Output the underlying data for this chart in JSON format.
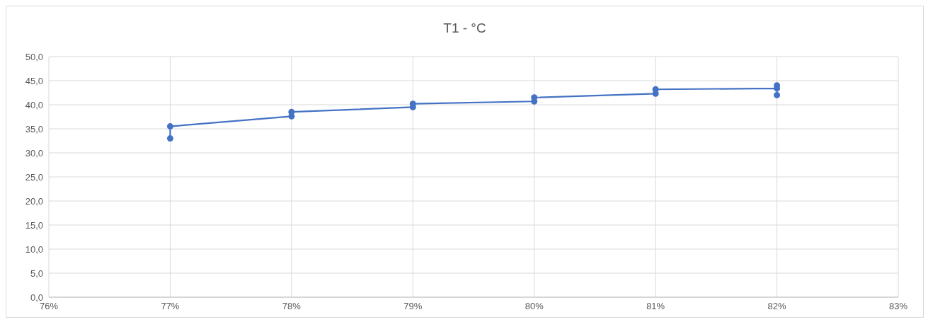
{
  "chart_data": {
    "type": "line",
    "title": "T1 - °C",
    "x": [
      0.77,
      0.77,
      0.78,
      0.78,
      0.79,
      0.79,
      0.8,
      0.8,
      0.81,
      0.81,
      0.82,
      0.82,
      0.82
    ],
    "series": [
      {
        "color": "#4472c4",
        "values": [
          33.0,
          35.5,
          37.6,
          38.5,
          39.5,
          40.2,
          40.7,
          41.5,
          42.3,
          43.2,
          43.4,
          44.0,
          42.0
        ]
      }
    ],
    "xlim": [
      0.76,
      0.83
    ],
    "xticks": [
      {
        "value": 0.76,
        "label": "76%"
      },
      {
        "value": 0.77,
        "label": "77%"
      },
      {
        "value": 0.78,
        "label": "78%"
      },
      {
        "value": 0.79,
        "label": "79%"
      },
      {
        "value": 0.8,
        "label": "80%"
      },
      {
        "value": 0.81,
        "label": "81%"
      },
      {
        "value": 0.82,
        "label": "82%"
      },
      {
        "value": 0.83,
        "label": "83%"
      }
    ],
    "ylim": [
      0,
      50
    ],
    "yticks": [
      {
        "value": 0,
        "label": "0,0"
      },
      {
        "value": 5,
        "label": "5,0"
      },
      {
        "value": 10,
        "label": "10,0"
      },
      {
        "value": 15,
        "label": "15,0"
      },
      {
        "value": 20,
        "label": "20,0"
      },
      {
        "value": 25,
        "label": "25,0"
      },
      {
        "value": 30,
        "label": "30,0"
      },
      {
        "value": 35,
        "label": "35,0"
      },
      {
        "value": 40,
        "label": "40,0"
      },
      {
        "value": 45,
        "label": "45,0"
      },
      {
        "value": 50,
        "label": "50,0"
      }
    ],
    "grid": true,
    "marker": "circle",
    "line_style": "solid"
  }
}
